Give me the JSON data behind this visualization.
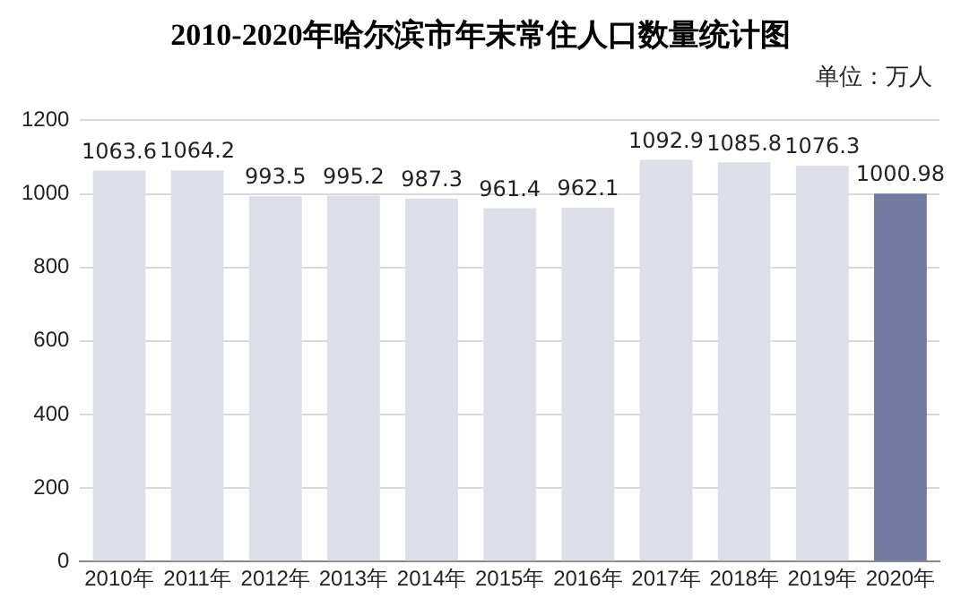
{
  "chart_data": {
    "type": "bar",
    "title": "2010-2020年哈尔滨市年末常住人口数量统计图",
    "annotations": [
      "单位：万人"
    ],
    "categories": [
      "2010年",
      "2011年",
      "2012年",
      "2013年",
      "2014年",
      "2015年",
      "2016年",
      "2017年",
      "2018年",
      "2019年",
      "2020年"
    ],
    "values": [
      1063.6,
      1064.2,
      993.5,
      995.2,
      987.3,
      961.4,
      962.1,
      1092.9,
      1085.8,
      1076.3,
      1000.98
    ],
    "colors": [
      "#dcdfe8",
      "#dcdfe8",
      "#dcdfe8",
      "#dcdfe8",
      "#dcdfe8",
      "#dcdfe8",
      "#dcdfe8",
      "#dcdfe8",
      "#dcdfe8",
      "#dcdfe8",
      "#737ba0"
    ],
    "ylim": [
      0,
      1200
    ],
    "yticks": [
      0,
      200,
      400,
      600,
      800,
      1000,
      1200
    ],
    "grid": "y",
    "data_labels": true,
    "legend": false
  }
}
